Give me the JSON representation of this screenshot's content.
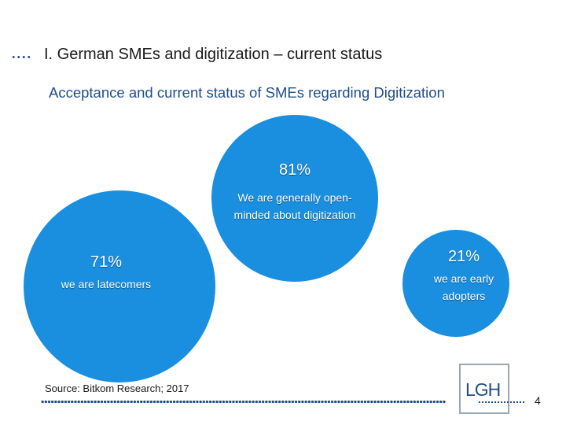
{
  "header": {
    "title": "I. German SMEs and digitization – current status",
    "subtitle": "Acceptance and current status of SMEs regarding Digitization"
  },
  "bubbles": [
    {
      "percent": "81%",
      "label": "We are generally open-minded about digitization",
      "value": 81
    },
    {
      "percent": "71%",
      "label": "we are latecomers",
      "value": 71
    },
    {
      "percent": "21%",
      "label": "we are early adopters",
      "value": 21
    }
  ],
  "footer": {
    "source": "Source: Bitkom Research; 2017",
    "logo_text": "LGH",
    "page_number": "4"
  },
  "colors": {
    "bubble": "#1a8fe0",
    "accent": "#1f4e8c",
    "logo_border": "#9aa6b2"
  }
}
